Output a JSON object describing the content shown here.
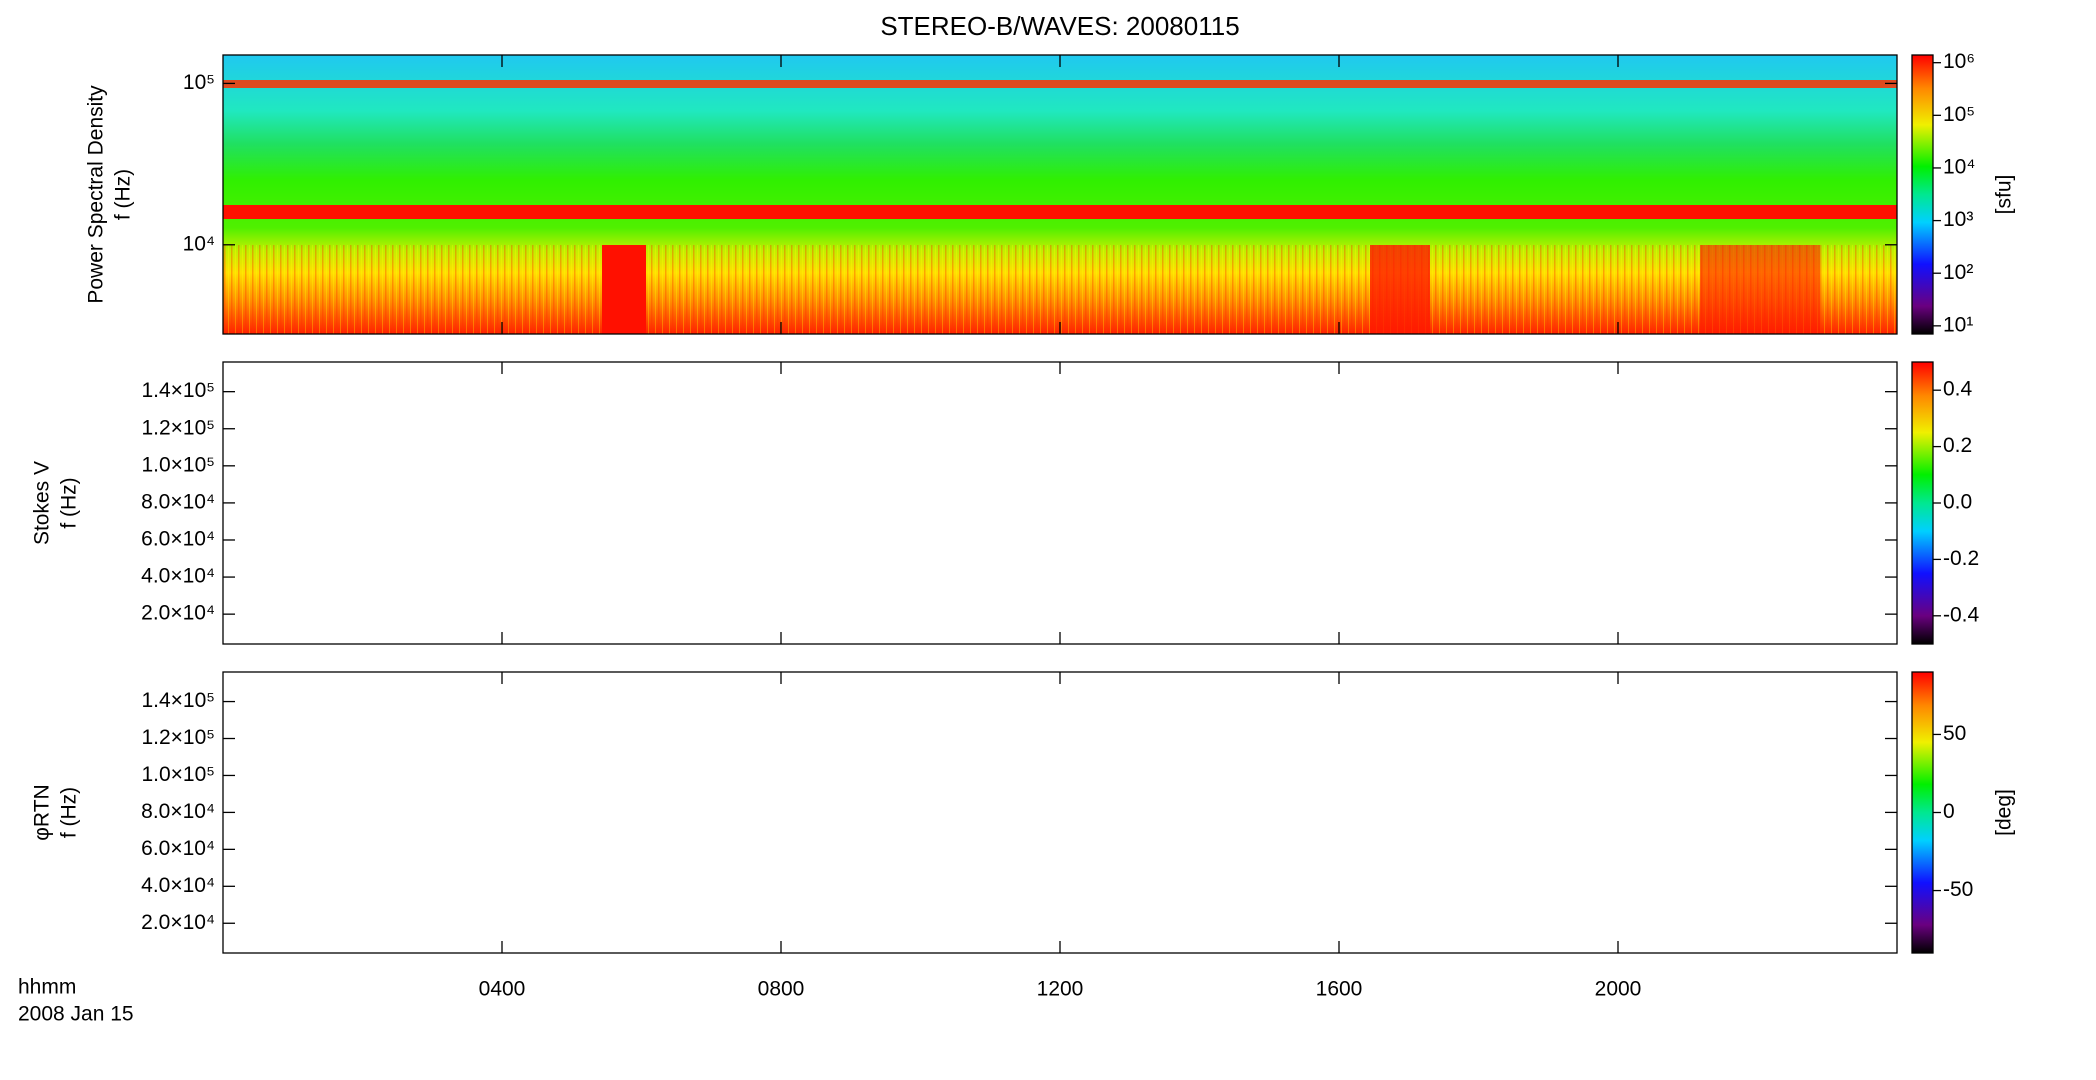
{
  "title": "STEREO-B/WAVES: 20080115",
  "xaxis": {
    "xlim": [
      0,
      24
    ],
    "xticks": [
      {
        "value": 4,
        "label": "0400"
      },
      {
        "value": 8,
        "label": "0800"
      },
      {
        "value": 12,
        "label": "1200"
      },
      {
        "value": 16,
        "label": "1600"
      },
      {
        "value": 20,
        "label": "2000"
      }
    ],
    "label": "hhmm",
    "date": "2008 Jan 15"
  },
  "chart_data": [
    {
      "type": "spectrogram",
      "ylabel": [
        "Power Spectral Density",
        "f (Hz)"
      ],
      "ylog": true,
      "ylim": [
        2800,
        150000
      ],
      "yticks": [
        {
          "value": 10000,
          "label": "10⁴"
        },
        {
          "value": 100000,
          "label": "10⁵"
        }
      ],
      "colorbar": {
        "log": true,
        "lim": [
          7,
          1400000
        ],
        "label": "[sfu]",
        "ticks": [
          {
            "value": 10,
            "label": "10¹"
          },
          {
            "value": 100,
            "label": "10²"
          },
          {
            "value": 1000,
            "label": "10³"
          },
          {
            "value": 10000,
            "label": "10⁴"
          },
          {
            "value": 100000,
            "label": "10⁵"
          },
          {
            "value": 1000000,
            "label": "10⁶"
          }
        ]
      }
    },
    {
      "type": "spectrogram",
      "ylabel": [
        "Stokes V",
        "f (Hz)"
      ],
      "ylog": false,
      "ylim": [
        3900,
        156000
      ],
      "yticks": [
        {
          "value": 20000,
          "label": "2.0×10⁴"
        },
        {
          "value": 40000,
          "label": "4.0×10⁴"
        },
        {
          "value": 60000,
          "label": "6.0×10⁴"
        },
        {
          "value": 80000,
          "label": "8.0×10⁴"
        },
        {
          "value": 100000,
          "label": "1.0×10⁵"
        },
        {
          "value": 120000,
          "label": "1.2×10⁵"
        },
        {
          "value": 140000,
          "label": "1.4×10⁵"
        }
      ],
      "colorbar": {
        "log": false,
        "lim": [
          -0.5,
          0.5
        ],
        "ticks": [
          -0.4,
          -0.2,
          {
            "value": 0,
            "label": "0.0"
          },
          0.2,
          0.4
        ]
      }
    },
    {
      "type": "spectrogram",
      "ylabel": [
        "φRTN",
        "f (Hz)"
      ],
      "ylog": false,
      "ylim": [
        3900,
        156000
      ],
      "yticks": [
        {
          "value": 20000,
          "label": "2.0×10⁴"
        },
        {
          "value": 40000,
          "label": "4.0×10⁴"
        },
        {
          "value": 60000,
          "label": "6.0×10⁴"
        },
        {
          "value": 80000,
          "label": "8.0×10⁴"
        },
        {
          "value": 100000,
          "label": "1.0×10⁵"
        },
        {
          "value": 120000,
          "label": "1.2×10⁵"
        },
        {
          "value": 140000,
          "label": "1.4×10⁵"
        }
      ],
      "colorbar": {
        "log": false,
        "lim": [
          -90,
          90
        ],
        "label": "[deg]",
        "ticks": [
          -50,
          0,
          50
        ]
      }
    }
  ]
}
